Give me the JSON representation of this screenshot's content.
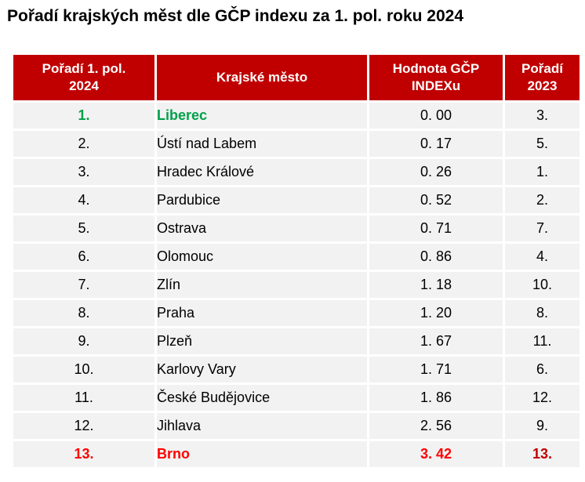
{
  "title": "Pořadí krajských měst dle GČP indexu za 1. pol. roku 2024",
  "table": {
    "headers": {
      "rank_line1": "Pořadí 1. pol.",
      "rank_line2": "2024",
      "city": "Krajské město",
      "value_line1": "Hodnota GČP",
      "value_line2": "INDEXu",
      "prev_line1": "Pořadí",
      "prev_line2": "2023"
    },
    "rows": [
      {
        "rank": "1.",
        "city": "Liberec",
        "value": "0. 00",
        "prev": "3."
      },
      {
        "rank": "2.",
        "city": "Ústí nad Labem",
        "value": "0. 17",
        "prev": "5."
      },
      {
        "rank": "3.",
        "city": "Hradec Králové",
        "value": "0. 26",
        "prev": "1."
      },
      {
        "rank": "4.",
        "city": "Pardubice",
        "value": "0. 52",
        "prev": "2."
      },
      {
        "rank": "5.",
        "city": "Ostrava",
        "value": "0. 71",
        "prev": "7."
      },
      {
        "rank": "6.",
        "city": "Olomouc",
        "value": "0. 86",
        "prev": "4."
      },
      {
        "rank": "7.",
        "city": "Zlín",
        "value": "1. 18",
        "prev": "10."
      },
      {
        "rank": "8.",
        "city": "Praha",
        "value": "1. 20",
        "prev": "8."
      },
      {
        "rank": "9.",
        "city": "Plzeň",
        "value": "1. 67",
        "prev": "11."
      },
      {
        "rank": "10.",
        "city": "Karlovy Vary",
        "value": "1. 71",
        "prev": "6."
      },
      {
        "rank": "11.",
        "city": "České Budějovice",
        "value": "1. 86",
        "prev": "12."
      },
      {
        "rank": "12.",
        "city": "Jihlava",
        "value": "2. 56",
        "prev": "9."
      },
      {
        "rank": "13.",
        "city": "Brno",
        "value": "3. 42",
        "prev": "13."
      }
    ]
  },
  "colors": {
    "header_background": "#c00000",
    "header_text": "#ffffff",
    "row_background": "#f2f2f2",
    "best_highlight": "#00a04b",
    "worst_highlight": "#ff0000"
  }
}
